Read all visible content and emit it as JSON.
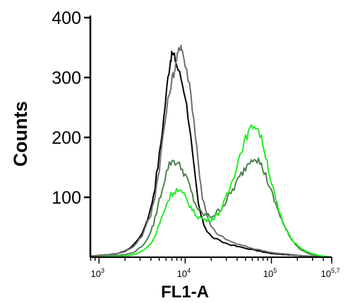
{
  "chart_data": {
    "type": "line",
    "title": "",
    "xlabel": "FL1-A",
    "ylabel": "Counts",
    "xscale": "log",
    "xlim": [
      794,
      501187
    ],
    "ylim": [
      0,
      400
    ],
    "y_ticks": [
      {
        "value": 100,
        "label": "100"
      },
      {
        "value": 200,
        "label": "200"
      },
      {
        "value": 300,
        "label": "300"
      },
      {
        "value": 400,
        "label": "400"
      }
    ],
    "x_tick_labels": [
      {
        "value": 1000,
        "base": "10",
        "exp": "3"
      },
      {
        "value": 10000,
        "base": "10",
        "exp": "4"
      },
      {
        "value": 100000,
        "base": "10",
        "exp": "5"
      },
      {
        "value": 501187,
        "base": "10",
        "exp": "5,7"
      }
    ],
    "series": [
      {
        "color": "#000000",
        "points": [
          [
            800,
            2
          ],
          [
            1000,
            3
          ],
          [
            1259,
            4
          ],
          [
            1585,
            6
          ],
          [
            1995,
            10
          ],
          [
            2512,
            20
          ],
          [
            3162,
            40
          ],
          [
            3981,
            80
          ],
          [
            4467,
            120
          ],
          [
            5012,
            170
          ],
          [
            5623,
            230
          ],
          [
            6310,
            300
          ],
          [
            6761,
            330
          ],
          [
            7079,
            340
          ],
          [
            7500,
            335
          ],
          [
            8000,
            320
          ],
          [
            8913,
            300
          ],
          [
            10000,
            270
          ],
          [
            11220,
            220
          ],
          [
            12589,
            150
          ],
          [
            14125,
            90
          ],
          [
            15849,
            60
          ],
          [
            17783,
            45
          ],
          [
            19953,
            35
          ],
          [
            25119,
            27
          ],
          [
            31623,
            22
          ],
          [
            39811,
            18
          ],
          [
            50119,
            15
          ],
          [
            63096,
            12
          ],
          [
            79433,
            9
          ],
          [
            100000,
            6
          ],
          [
            125893,
            5
          ],
          [
            158489,
            4
          ],
          [
            199526,
            3
          ],
          [
            251189,
            2
          ],
          [
            316228,
            1
          ],
          [
            398107,
            1
          ],
          [
            500000,
            0
          ]
        ]
      },
      {
        "color": "#6e6e6e",
        "points": [
          [
            800,
            2
          ],
          [
            1000,
            3
          ],
          [
            1259,
            4
          ],
          [
            1585,
            6
          ],
          [
            1995,
            9
          ],
          [
            2512,
            18
          ],
          [
            3162,
            36
          ],
          [
            3981,
            70
          ],
          [
            4467,
            105
          ],
          [
            5012,
            150
          ],
          [
            5623,
            210
          ],
          [
            6310,
            260
          ],
          [
            7079,
            300
          ],
          [
            7500,
            310
          ],
          [
            7943,
            330
          ],
          [
            8414,
            345
          ],
          [
            8913,
            355
          ],
          [
            9441,
            340
          ],
          [
            10000,
            320
          ],
          [
            11220,
            290
          ],
          [
            12589,
            230
          ],
          [
            14125,
            160
          ],
          [
            15849,
            100
          ],
          [
            17783,
            70
          ],
          [
            19953,
            50
          ],
          [
            25119,
            36
          ],
          [
            31623,
            28
          ],
          [
            39811,
            22
          ],
          [
            50119,
            18
          ],
          [
            63096,
            14
          ],
          [
            79433,
            11
          ],
          [
            100000,
            8
          ],
          [
            125893,
            6
          ],
          [
            158489,
            5
          ],
          [
            199526,
            3
          ],
          [
            251189,
            2
          ],
          [
            316228,
            1
          ],
          [
            398107,
            1
          ],
          [
            500000,
            0
          ]
        ]
      },
      {
        "color": "#4f7f4f",
        "points": [
          [
            800,
            1
          ],
          [
            1000,
            1
          ],
          [
            1259,
            2
          ],
          [
            1585,
            3
          ],
          [
            1995,
            4
          ],
          [
            2512,
            8
          ],
          [
            3162,
            18
          ],
          [
            3981,
            40
          ],
          [
            4467,
            65
          ],
          [
            5012,
            95
          ],
          [
            5623,
            125
          ],
          [
            6310,
            150
          ],
          [
            7079,
            162
          ],
          [
            7943,
            158
          ],
          [
            8913,
            150
          ],
          [
            10000,
            138
          ],
          [
            11220,
            118
          ],
          [
            12589,
            95
          ],
          [
            14125,
            80
          ],
          [
            15849,
            72
          ],
          [
            17783,
            70
          ],
          [
            19953,
            68
          ],
          [
            22387,
            72
          ],
          [
            25119,
            80
          ],
          [
            28184,
            88
          ],
          [
            31623,
            100
          ],
          [
            35481,
            112
          ],
          [
            39811,
            125
          ],
          [
            44668,
            138
          ],
          [
            50119,
            150
          ],
          [
            56234,
            162
          ],
          [
            63096,
            168
          ],
          [
            70795,
            162
          ],
          [
            79433,
            148
          ],
          [
            89125,
            130
          ],
          [
            100000,
            108
          ],
          [
            112202,
            88
          ],
          [
            125893,
            70
          ],
          [
            141254,
            52
          ],
          [
            158489,
            38
          ],
          [
            177828,
            27
          ],
          [
            199526,
            18
          ],
          [
            223872,
            12
          ],
          [
            251189,
            8
          ],
          [
            281838,
            5
          ],
          [
            316228,
            3
          ],
          [
            398107,
            1
          ],
          [
            500000,
            0
          ]
        ]
      },
      {
        "color": "#22ee22",
        "points": [
          [
            800,
            0
          ],
          [
            1000,
            0
          ],
          [
            1259,
            1
          ],
          [
            1585,
            1
          ],
          [
            1995,
            2
          ],
          [
            2512,
            4
          ],
          [
            3162,
            10
          ],
          [
            3981,
            22
          ],
          [
            4467,
            35
          ],
          [
            5012,
            55
          ],
          [
            5623,
            75
          ],
          [
            6310,
            95
          ],
          [
            7079,
            108
          ],
          [
            7943,
            112
          ],
          [
            8913,
            108
          ],
          [
            10000,
            100
          ],
          [
            11220,
            88
          ],
          [
            12589,
            75
          ],
          [
            14125,
            68
          ],
          [
            15849,
            64
          ],
          [
            17783,
            62
          ],
          [
            19953,
            63
          ],
          [
            22387,
            68
          ],
          [
            25119,
            76
          ],
          [
            28184,
            90
          ],
          [
            31623,
            108
          ],
          [
            35481,
            130
          ],
          [
            39811,
            155
          ],
          [
            44668,
            178
          ],
          [
            50119,
            198
          ],
          [
            56234,
            212
          ],
          [
            63096,
            222
          ],
          [
            70795,
            212
          ],
          [
            79433,
            190
          ],
          [
            89125,
            160
          ],
          [
            100000,
            125
          ],
          [
            112202,
            95
          ],
          [
            125893,
            70
          ],
          [
            141254,
            52
          ],
          [
            158489,
            38
          ],
          [
            177828,
            28
          ],
          [
            199526,
            20
          ],
          [
            223872,
            14
          ],
          [
            251189,
            10
          ],
          [
            281838,
            7
          ],
          [
            316228,
            5
          ],
          [
            354813,
            3
          ],
          [
            398107,
            2
          ],
          [
            446684,
            1
          ],
          [
            500000,
            0
          ]
        ]
      }
    ]
  }
}
